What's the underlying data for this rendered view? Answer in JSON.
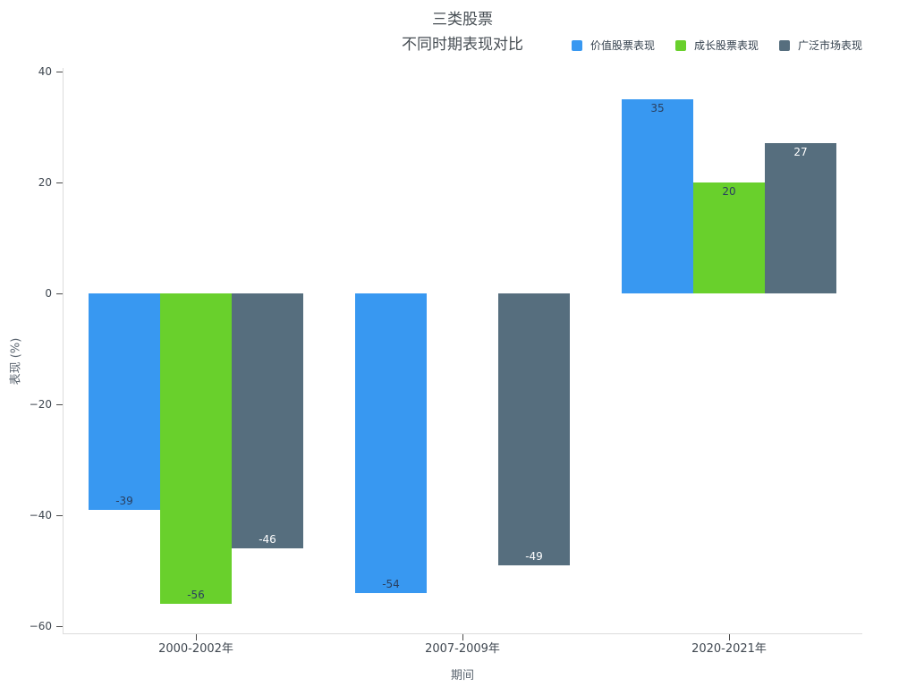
{
  "chart_data": {
    "type": "bar",
    "title": "三类股票 不同时期表现对比",
    "title_lines": [
      "三类股票",
      "不同时期表现对比"
    ],
    "categories": [
      "2000-2002年",
      "2007-2009年",
      "2020-2021年"
    ],
    "series": [
      {
        "name": "价值股票表现",
        "color": "#3898f1",
        "label_color": "#2a3f5f",
        "values": [
          -39,
          -54,
          35
        ]
      },
      {
        "name": "成长股票表现",
        "color": "#69d02c",
        "label_color": "#2a3f5f",
        "values": [
          -56,
          null,
          20
        ]
      },
      {
        "name": "广泛市场表现",
        "color": "#566e7e",
        "label_color": "#ffffff",
        "values": [
          -46,
          -49,
          27
        ]
      }
    ],
    "xlabel": "期间",
    "ylabel": "表现 (%)",
    "ylim": [
      -61.3,
      40.6
    ],
    "yticks": [
      40,
      20,
      0,
      -20,
      -40,
      -60
    ],
    "bar_value_labels": true,
    "grid": false,
    "legend_position": "top-right",
    "background": "#ffffff"
  }
}
